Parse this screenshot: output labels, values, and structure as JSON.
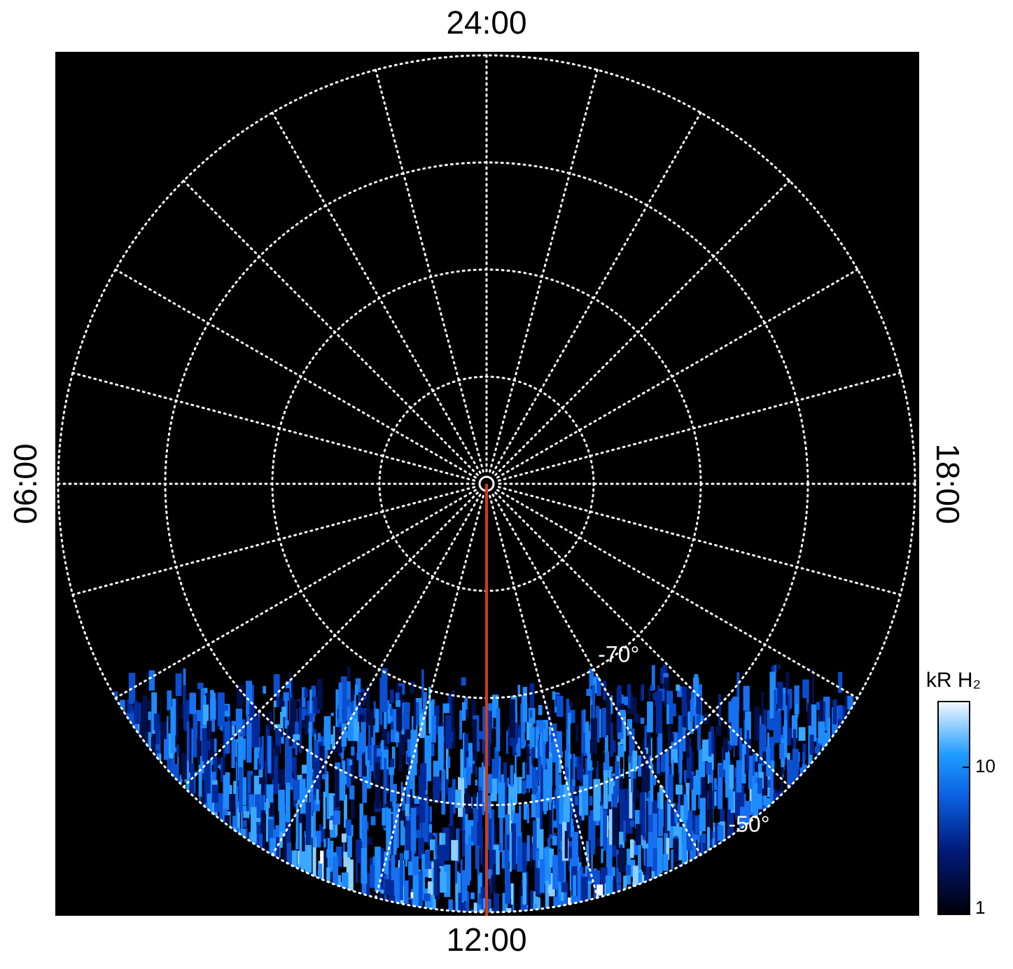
{
  "chart_data": {
    "type": "polar",
    "hour_labels": [
      {
        "value": 0,
        "label": "24:00"
      },
      {
        "value": 6,
        "label": "06:00"
      },
      {
        "value": 12,
        "label": "12:00"
      },
      {
        "value": 18,
        "label": "18:00"
      }
    ],
    "hour_range": [
      0,
      24
    ],
    "hour_step": 1,
    "lat_circles": [
      -80,
      -70,
      -60,
      -50
    ],
    "rlim": [
      -90,
      -50
    ],
    "lat_labels": [
      {
        "value": -70,
        "label": "-70°"
      },
      {
        "value": -50,
        "label": "-50°"
      }
    ],
    "grid_color": "#ffffff",
    "highlight_hour": 12,
    "highlight_color": "#d23c12",
    "colorbar": {
      "label": "kR H₂",
      "scale": "log",
      "lim": [
        1,
        28
      ],
      "ticks": [
        1,
        10
      ]
    }
  }
}
